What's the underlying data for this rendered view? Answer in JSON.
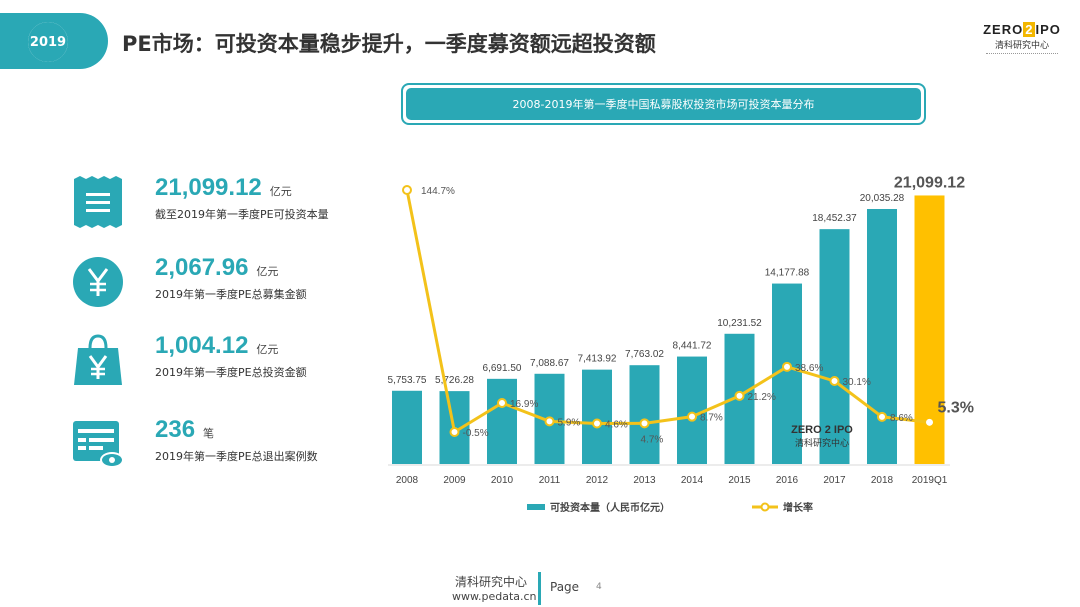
{
  "header": {
    "year_badge": "2019",
    "title": "PE市场：可投资本量稳步提升，一季度募资额远超投资额"
  },
  "logo": {
    "left": "ZERO",
    "mid": "2",
    "right": "IPO",
    "sub": "清科研究中心"
  },
  "chart_box_title": "2008-2019年第一季度中国私募股权投资市场可投资本量分布",
  "stats": [
    {
      "value": "21,099.12",
      "unit": "亿元",
      "desc": "截至2019年第一季度PE可投资本量",
      "icon": "receipt-icon"
    },
    {
      "value": "2,067.96",
      "unit": "亿元",
      "desc": "2019年第一季度PE总募集金额",
      "icon": "yen-circle-icon"
    },
    {
      "value": "1,004.12",
      "unit": "亿元",
      "desc": "2019年第一季度PE总投资金额",
      "icon": "yen-bag-icon"
    },
    {
      "value": "236",
      "unit": "笔",
      "desc": "2019年第一季度PE总退出案例数",
      "icon": "card-eye-icon"
    }
  ],
  "chart_data": {
    "type": "bar",
    "categories": [
      "2008",
      "2009",
      "2010",
      "2011",
      "2012",
      "2013",
      "2014",
      "2015",
      "2016",
      "2017",
      "2018",
      "2019Q1"
    ],
    "series": [
      {
        "name": "可投资本量（人民币亿元）",
        "type": "bar",
        "values": [
          5753.75,
          5726.28,
          6691.5,
          7088.67,
          7413.92,
          7763.02,
          8441.72,
          10231.52,
          14177.88,
          18452.37,
          20035.28,
          21099.12
        ],
        "labels": [
          "5,753.75",
          "5,726.28",
          "6,691.50",
          "7,088.67",
          "7,413.92",
          "7,763.02",
          "8,441.72",
          "10,231.52",
          "14,177.88",
          "18,452.37",
          "20,035.28",
          "21,099.12"
        ],
        "color": "#2aa8b5",
        "highlight_color": "#ffc000"
      },
      {
        "name": "增长率",
        "type": "line",
        "values": [
          144.7,
          -0.5,
          16.9,
          5.9,
          4.6,
          4.7,
          8.7,
          21.2,
          38.6,
          30.1,
          8.6,
          5.3
        ],
        "labels": [
          "144.7%",
          "-0.5%",
          "16.9%",
          "5.9%",
          "4.6%",
          "4.7%",
          "8.7%",
          "21.2%",
          "38.6%",
          "30.1%",
          "8.6%",
          "5.3%"
        ],
        "color": "#f3c21a"
      }
    ],
    "legend_position": "bottom",
    "watermark": {
      "left": "ZERO",
      "mid": "2",
      "right": "IPO",
      "sub": "清科研究中心"
    }
  },
  "footer": {
    "source": "清科研究中心",
    "url": "www.pedata.cn",
    "page_label": "Page",
    "page_number": "4"
  }
}
